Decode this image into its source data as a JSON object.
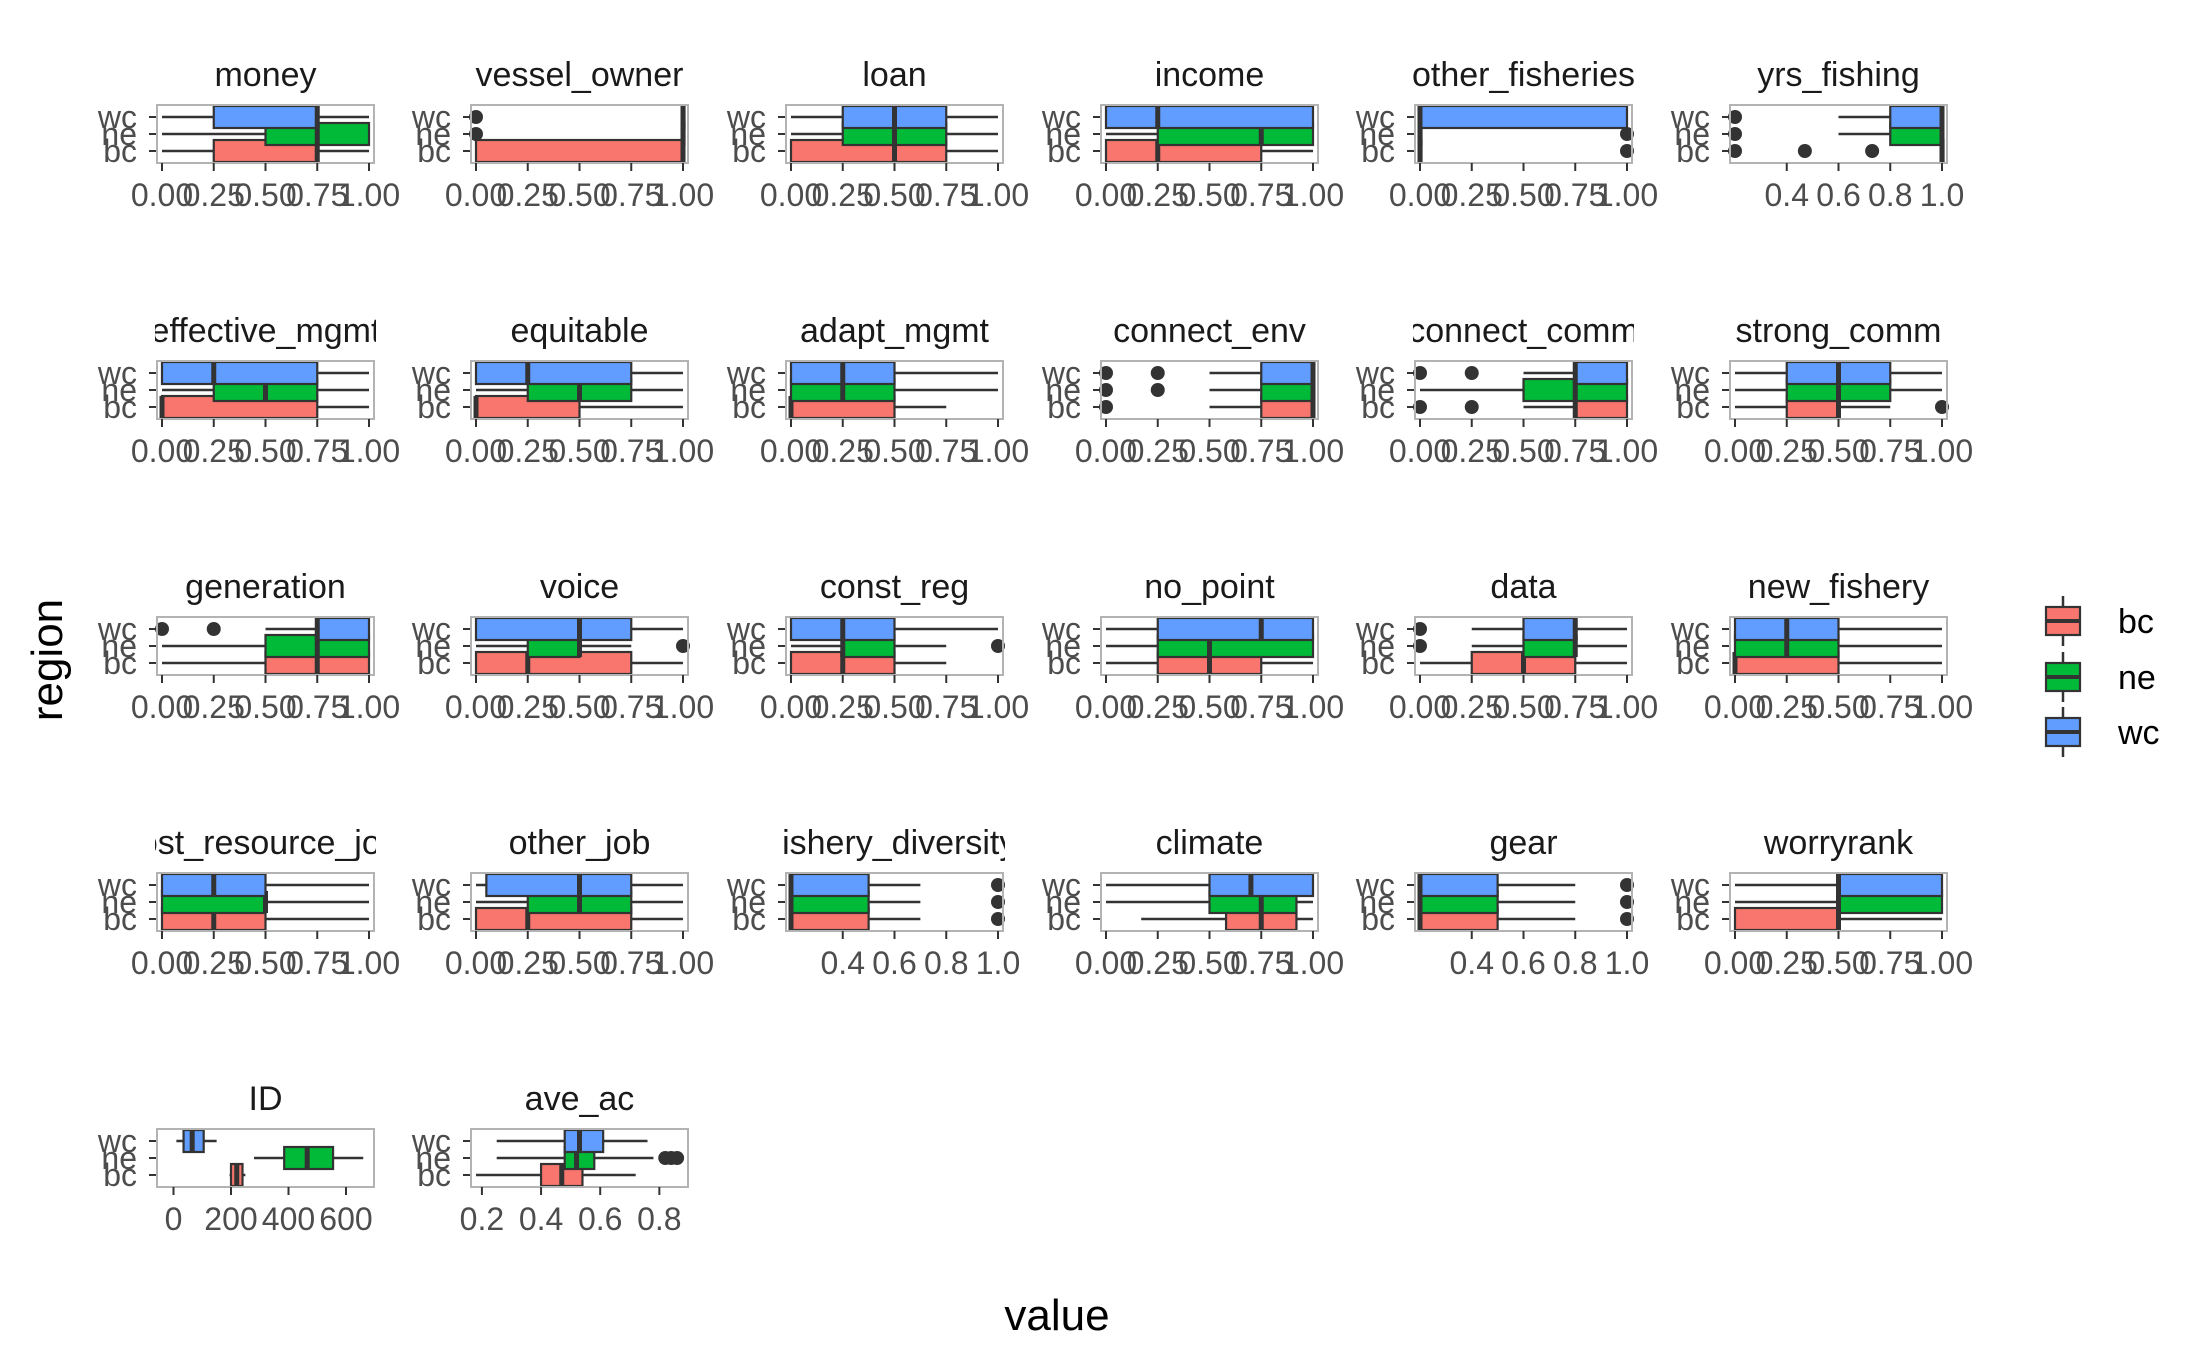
{
  "chart_data": {
    "type": "boxplot",
    "xlabel": "value",
    "ylabel": "region",
    "categories": [
      "bc",
      "ne",
      "wc"
    ],
    "legend": {
      "placement": "right",
      "entries": [
        {
          "label": "bc",
          "color": "#F8766D"
        },
        {
          "label": "ne",
          "color": "#00BA38"
        },
        {
          "label": "wc",
          "color": "#619CFF"
        }
      ]
    },
    "std_ticks": [
      "0.00",
      "0.25",
      "0.50",
      "0.75",
      "1.00"
    ],
    "panels": [
      {
        "title": "money",
        "xlim": [
          0,
          1
        ],
        "tick_values": [
          0,
          0.25,
          0.5,
          0.75,
          1
        ],
        "boxes": {
          "bc": [
            0,
            0.25,
            0.75,
            0.75,
            1,
            []
          ],
          "ne": [
            0,
            0.5,
            0.75,
            1,
            1,
            []
          ],
          "wc": [
            0,
            0.25,
            0.75,
            0.75,
            1,
            []
          ]
        }
      },
      {
        "title": "vessel_owner",
        "xlim": [
          0,
          1
        ],
        "tick_values": [
          0,
          0.25,
          0.5,
          0.75,
          1
        ],
        "boxes": {
          "bc": [
            0,
            0,
            1,
            1,
            1,
            []
          ],
          "ne": [
            1,
            1,
            1,
            1,
            1,
            [
              0
            ]
          ],
          "wc": [
            1,
            1,
            1,
            1,
            1,
            [
              0
            ]
          ]
        }
      },
      {
        "title": "loan",
        "xlim": [
          0,
          1
        ],
        "tick_values": [
          0,
          0.25,
          0.5,
          0.75,
          1
        ],
        "boxes": {
          "bc": [
            0,
            0,
            0.5,
            0.75,
            1,
            []
          ],
          "ne": [
            0,
            0.25,
            0.5,
            0.75,
            1,
            []
          ],
          "wc": [
            0,
            0.25,
            0.5,
            0.75,
            1,
            []
          ]
        }
      },
      {
        "title": "income",
        "xlim": [
          0,
          1
        ],
        "tick_values": [
          0,
          0.25,
          0.5,
          0.75,
          1
        ],
        "boxes": {
          "bc": [
            0,
            0,
            0.25,
            0.75,
            1,
            []
          ],
          "ne": [
            0,
            0.25,
            0.75,
            1,
            1,
            []
          ],
          "wc": [
            0,
            0,
            0.25,
            1,
            1,
            []
          ]
        }
      },
      {
        "title": "other_fisheries",
        "xlim": [
          0,
          1
        ],
        "tick_values": [
          0,
          0.25,
          0.5,
          0.75,
          1
        ],
        "boxes": {
          "bc": [
            0,
            0,
            0,
            0,
            0,
            [
              1
            ]
          ],
          "ne": [
            0,
            0,
            0,
            0,
            0,
            [
              1
            ]
          ],
          "wc": [
            0,
            0,
            0,
            1,
            1,
            []
          ]
        }
      },
      {
        "title": "yrs_fishing",
        "xlim": [
          0.2,
          1
        ],
        "tick_values": [
          0.4,
          0.6,
          0.8,
          1
        ],
        "tick_labels": [
          "0.4",
          "0.6",
          "0.8",
          "1.0"
        ],
        "boxes": {
          "bc": [
            1,
            1,
            1,
            1,
            1,
            [
              0.2,
              0.47,
              0.73
            ]
          ],
          "ne": [
            0.6,
            0.8,
            1,
            1,
            1,
            [
              0.2
            ]
          ],
          "wc": [
            0.6,
            0.8,
            1,
            1,
            1,
            [
              0.2
            ]
          ]
        }
      },
      {
        "title": "effective_mgmt",
        "xlim": [
          0,
          1
        ],
        "tick_values": [
          0,
          0.25,
          0.5,
          0.75,
          1
        ],
        "boxes": {
          "bc": [
            0,
            0,
            0,
            0.75,
            1,
            []
          ],
          "ne": [
            0,
            0.25,
            0.5,
            0.75,
            1,
            []
          ],
          "wc": [
            0,
            0,
            0.25,
            0.75,
            1,
            []
          ]
        }
      },
      {
        "title": "equitable",
        "xlim": [
          0,
          1
        ],
        "tick_values": [
          0,
          0.25,
          0.5,
          0.75,
          1
        ],
        "boxes": {
          "bc": [
            0,
            0,
            0,
            0.5,
            1,
            []
          ],
          "ne": [
            0,
            0.25,
            0.5,
            0.75,
            1,
            []
          ],
          "wc": [
            0,
            0,
            0.25,
            0.75,
            1,
            []
          ]
        }
      },
      {
        "title": "adapt_mgmt",
        "xlim": [
          0,
          1
        ],
        "tick_values": [
          0,
          0.25,
          0.5,
          0.75,
          1
        ],
        "boxes": {
          "bc": [
            0,
            0,
            0,
            0.5,
            0.75,
            []
          ],
          "ne": [
            0,
            0,
            0.25,
            0.5,
            1,
            []
          ],
          "wc": [
            0,
            0,
            0.25,
            0.5,
            1,
            []
          ]
        }
      },
      {
        "title": "connect_env",
        "xlim": [
          0,
          1
        ],
        "tick_values": [
          0,
          0.25,
          0.5,
          0.75,
          1
        ],
        "boxes": {
          "bc": [
            0.5,
            0.75,
            1,
            1,
            1,
            [
              0
            ]
          ],
          "ne": [
            0.5,
            0.75,
            1,
            1,
            1,
            [
              0,
              0.25
            ]
          ],
          "wc": [
            0.5,
            0.75,
            1,
            1,
            1,
            [
              0,
              0.25
            ]
          ]
        }
      },
      {
        "title": "connect_comm",
        "xlim": [
          0,
          1
        ],
        "tick_values": [
          0,
          0.25,
          0.5,
          0.75,
          1
        ],
        "boxes": {
          "bc": [
            0.5,
            0.75,
            0.75,
            1,
            1,
            [
              0,
              0.25
            ]
          ],
          "ne": [
            0,
            0.5,
            0.75,
            1,
            1,
            []
          ],
          "wc": [
            0.5,
            0.75,
            0.75,
            1,
            1,
            [
              0,
              0.25
            ]
          ]
        }
      },
      {
        "title": "strong_comm",
        "xlim": [
          0,
          1
        ],
        "tick_values": [
          0,
          0.25,
          0.5,
          0.75,
          1
        ],
        "boxes": {
          "bc": [
            0,
            0.25,
            0.5,
            0.5,
            0.75,
            [
              1
            ]
          ],
          "ne": [
            0,
            0.25,
            0.5,
            0.75,
            1,
            []
          ],
          "wc": [
            0,
            0.25,
            0.5,
            0.75,
            1,
            []
          ]
        }
      },
      {
        "title": "generation",
        "xlim": [
          0,
          1
        ],
        "tick_values": [
          0,
          0.25,
          0.5,
          0.75,
          1
        ],
        "boxes": {
          "bc": [
            0,
            0.5,
            0.75,
            1,
            1,
            []
          ],
          "ne": [
            0,
            0.5,
            0.75,
            1,
            1,
            []
          ],
          "wc": [
            0.5,
            0.75,
            0.75,
            1,
            1,
            [
              0,
              0.25
            ]
          ]
        }
      },
      {
        "title": "voice",
        "xlim": [
          0,
          1
        ],
        "tick_values": [
          0,
          0.25,
          0.5,
          0.75,
          1
        ],
        "boxes": {
          "bc": [
            0,
            0,
            0.25,
            0.75,
            1,
            []
          ],
          "ne": [
            0,
            0.25,
            0.5,
            0.5,
            0.75,
            [
              1
            ]
          ],
          "wc": [
            0,
            0,
            0.5,
            0.75,
            1,
            []
          ]
        }
      },
      {
        "title": "const_reg",
        "xlim": [
          0,
          1
        ],
        "tick_values": [
          0,
          0.25,
          0.5,
          0.75,
          1
        ],
        "boxes": {
          "bc": [
            0,
            0,
            0.25,
            0.5,
            0.75,
            []
          ],
          "ne": [
            0,
            0.25,
            0.25,
            0.5,
            0.75,
            [
              1
            ]
          ],
          "wc": [
            0,
            0,
            0.25,
            0.5,
            1,
            []
          ]
        }
      },
      {
        "title": "no_point",
        "xlim": [
          0,
          1
        ],
        "tick_values": [
          0,
          0.25,
          0.5,
          0.75,
          1
        ],
        "boxes": {
          "bc": [
            0,
            0.25,
            0.5,
            0.75,
            1,
            []
          ],
          "ne": [
            0,
            0.25,
            0.5,
            1,
            1,
            []
          ],
          "wc": [
            0,
            0.25,
            0.75,
            1,
            1,
            []
          ]
        }
      },
      {
        "title": "data",
        "xlim": [
          0,
          1
        ],
        "tick_values": [
          0,
          0.25,
          0.5,
          0.75,
          1
        ],
        "boxes": {
          "bc": [
            0,
            0.25,
            0.5,
            0.75,
            1,
            []
          ],
          "ne": [
            0.25,
            0.5,
            0.75,
            0.75,
            1,
            [
              0
            ]
          ],
          "wc": [
            0.25,
            0.5,
            0.75,
            0.75,
            1,
            [
              0
            ]
          ]
        }
      },
      {
        "title": "new_fishery",
        "xlim": [
          0,
          1
        ],
        "tick_values": [
          0,
          0.25,
          0.5,
          0.75,
          1
        ],
        "boxes": {
          "bc": [
            0,
            0,
            0,
            0.5,
            1,
            []
          ],
          "ne": [
            0,
            0,
            0.25,
            0.5,
            1,
            []
          ],
          "wc": [
            0,
            0,
            0.25,
            0.5,
            1,
            []
          ]
        }
      },
      {
        "title": "lost_resource_job",
        "xlim": [
          0,
          1
        ],
        "tick_values": [
          0,
          0.25,
          0.5,
          0.75,
          1
        ],
        "boxes": {
          "bc": [
            0,
            0,
            0.25,
            0.5,
            1,
            []
          ],
          "ne": [
            0,
            0,
            0.5,
            0.5,
            1,
            []
          ],
          "wc": [
            0,
            0,
            0.25,
            0.5,
            1,
            []
          ]
        }
      },
      {
        "title": "other_job",
        "xlim": [
          0,
          1
        ],
        "tick_values": [
          0,
          0.25,
          0.5,
          0.75,
          1
        ],
        "boxes": {
          "bc": [
            0,
            0,
            0.25,
            0.75,
            1,
            []
          ],
          "ne": [
            0,
            0.25,
            0.5,
            0.75,
            1,
            []
          ],
          "wc": [
            0,
            0.05,
            0.5,
            0.75,
            1,
            []
          ]
        }
      },
      {
        "title": "fishery_diversity",
        "xlim": [
          0.2,
          1
        ],
        "tick_values": [
          0.4,
          0.6,
          0.8,
          1
        ],
        "tick_labels": [
          "0.4",
          "0.6",
          "0.8",
          "1.0"
        ],
        "boxes": {
          "bc": [
            0.2,
            0.2,
            0.2,
            0.5,
            0.7,
            [
              1
            ]
          ],
          "ne": [
            0.2,
            0.2,
            0.2,
            0.5,
            0.7,
            [
              1
            ]
          ],
          "wc": [
            0.2,
            0.2,
            0.2,
            0.5,
            0.7,
            [
              1
            ]
          ]
        }
      },
      {
        "title": "climate",
        "xlim": [
          0,
          1
        ],
        "tick_values": [
          0,
          0.25,
          0.5,
          0.75,
          1
        ],
        "boxes": {
          "bc": [
            0.17,
            0.58,
            0.75,
            0.92,
            1,
            []
          ],
          "ne": [
            0,
            0.5,
            0.75,
            0.92,
            1,
            []
          ],
          "wc": [
            0,
            0.5,
            0.7,
            1,
            1,
            []
          ]
        }
      },
      {
        "title": "gear",
        "xlim": [
          0.2,
          1
        ],
        "tick_values": [
          0.4,
          0.6,
          0.8,
          1
        ],
        "tick_labels": [
          "0.4",
          "0.6",
          "0.8",
          "1.0"
        ],
        "boxes": {
          "bc": [
            0.2,
            0.2,
            0.2,
            0.5,
            0.8,
            [
              1
            ]
          ],
          "ne": [
            0.2,
            0.2,
            0.2,
            0.5,
            0.8,
            [
              1
            ]
          ],
          "wc": [
            0.2,
            0.2,
            0.2,
            0.5,
            0.8,
            [
              1
            ]
          ]
        }
      },
      {
        "title": "worryrank",
        "xlim": [
          0,
          1
        ],
        "tick_values": [
          0,
          0.25,
          0.5,
          0.75,
          1
        ],
        "boxes": {
          "bc": [
            0,
            0,
            0.5,
            0.5,
            1,
            []
          ],
          "ne": [
            0,
            0.5,
            0.5,
            1,
            1,
            []
          ],
          "wc": [
            0,
            0.5,
            0.5,
            1,
            1,
            []
          ]
        }
      },
      {
        "title": "ID",
        "xlim": [
          -40,
          680
        ],
        "tick_values": [
          0,
          200,
          400,
          600
        ],
        "tick_labels": [
          "0",
          "200",
          "400",
          "600"
        ],
        "boxes": {
          "bc": [
            195,
            200,
            220,
            240,
            250,
            []
          ],
          "ne": [
            280,
            385,
            465,
            555,
            660,
            []
          ],
          "wc": [
            10,
            35,
            65,
            105,
            150,
            []
          ]
        }
      },
      {
        "title": "ave_ac",
        "xlim": [
          0.18,
          0.88
        ],
        "tick_values": [
          0.2,
          0.4,
          0.6,
          0.8
        ],
        "tick_labels": [
          "0.2",
          "0.4",
          "0.6",
          "0.8"
        ],
        "boxes": {
          "bc": [
            0.18,
            0.4,
            0.47,
            0.54,
            0.72,
            []
          ],
          "ne": [
            0.25,
            0.48,
            0.52,
            0.58,
            0.78,
            [
              0.82,
              0.84,
              0.86
            ]
          ],
          "wc": [
            0.25,
            0.48,
            0.53,
            0.61,
            0.76,
            []
          ]
        }
      }
    ]
  }
}
